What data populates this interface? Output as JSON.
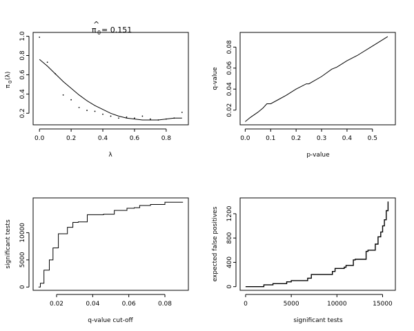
{
  "chart_data": [
    {
      "id": "pi0",
      "type": "scatter",
      "title": "π̂₀= 0.151",
      "title_parts": {
        "symbol": "π",
        "hat": "^",
        "sub": "0",
        "rest": "= 0.151"
      },
      "xlabel": "λ",
      "ylabel": "π₀(λ)",
      "ylabel_parts": {
        "symbol": "π",
        "sub": "0",
        "rest": "(λ)"
      },
      "xlim": [
        -0.04,
        0.94
      ],
      "ylim": [
        0.08,
        1.04
      ],
      "xticks": [
        0.0,
        0.2,
        0.4,
        0.6,
        0.8
      ],
      "xtick_labels": [
        "0.0",
        "0.2",
        "0.4",
        "0.6",
        "0.8"
      ],
      "yticks": [
        0.2,
        0.4,
        0.6,
        0.8,
        1.0
      ],
      "ytick_labels": [
        "0.2",
        "0.4",
        "0.6",
        "0.8",
        "1.0"
      ],
      "points": {
        "x": [
          0.0,
          0.05,
          0.1,
          0.15,
          0.2,
          0.25,
          0.3,
          0.35,
          0.4,
          0.45,
          0.5,
          0.55,
          0.6,
          0.65,
          0.7,
          0.75,
          0.8,
          0.85,
          0.9
        ],
        "y": [
          0.99,
          0.73,
          0.61,
          0.39,
          0.34,
          0.26,
          0.23,
          0.22,
          0.19,
          0.17,
          0.15,
          0.16,
          0.15,
          0.17,
          0.14,
          0.13,
          0.14,
          0.15,
          0.21
        ]
      },
      "smooth_curve": {
        "x": [
          0.0,
          0.05,
          0.1,
          0.15,
          0.2,
          0.25,
          0.3,
          0.35,
          0.4,
          0.45,
          0.5,
          0.55,
          0.6,
          0.65,
          0.7,
          0.75,
          0.8,
          0.85,
          0.9
        ],
        "y": [
          0.76,
          0.69,
          0.61,
          0.53,
          0.46,
          0.39,
          0.33,
          0.28,
          0.24,
          0.2,
          0.17,
          0.15,
          0.14,
          0.13,
          0.13,
          0.13,
          0.14,
          0.15,
          0.15
        ]
      }
    },
    {
      "id": "qp",
      "type": "line",
      "title": "",
      "xlabel": "p-value",
      "ylabel": "q-value",
      "xlim": [
        -0.02,
        0.59
      ],
      "ylim": [
        0.006,
        0.094
      ],
      "xticks": [
        0.0,
        0.1,
        0.2,
        0.3,
        0.4,
        0.5
      ],
      "xtick_labels": [
        "0.0",
        "0.1",
        "0.2",
        "0.3",
        "0.4",
        "0.5"
      ],
      "yticks": [
        0.02,
        0.04,
        0.06,
        0.08
      ],
      "ytick_labels": [
        "0.02",
        "0.04",
        "0.06",
        "0.08"
      ],
      "x": [
        0.0,
        0.02,
        0.05,
        0.07,
        0.085,
        0.1,
        0.13,
        0.16,
        0.2,
        0.24,
        0.25,
        0.3,
        0.34,
        0.36,
        0.4,
        0.44,
        0.5,
        0.56
      ],
      "y": [
        0.009,
        0.013,
        0.018,
        0.022,
        0.026,
        0.026,
        0.03,
        0.034,
        0.04,
        0.045,
        0.045,
        0.052,
        0.059,
        0.061,
        0.067,
        0.072,
        0.081,
        0.09
      ]
    },
    {
      "id": "sig",
      "type": "line",
      "step": true,
      "title": "",
      "xlabel": "q-value cut-off",
      "ylabel": "significant tests",
      "xlim": [
        0.007,
        0.093
      ],
      "ylim": [
        -600,
        16400
      ],
      "xticks": [
        0.02,
        0.04,
        0.06,
        0.08
      ],
      "xtick_labels": [
        "0.02",
        "0.04",
        "0.06",
        "0.08"
      ],
      "yticks": [
        0,
        5000,
        10000
      ],
      "ytick_labels": [
        "0",
        "5000",
        "10000"
      ],
      "x": [
        0.01,
        0.011,
        0.013,
        0.016,
        0.018,
        0.021,
        0.026,
        0.029,
        0.032,
        0.037,
        0.046,
        0.052,
        0.059,
        0.063,
        0.066,
        0.072,
        0.08,
        0.09
      ],
      "y": [
        0,
        700,
        3100,
        5000,
        7200,
        9800,
        11000,
        11900,
        12000,
        13300,
        13400,
        14100,
        14500,
        14600,
        15000,
        15200,
        15600,
        15600
      ]
    },
    {
      "id": "efp",
      "type": "line",
      "step": true,
      "title": "",
      "xlabel": "significant tests",
      "ylabel": "expected false positives",
      "xlim": [
        -600,
        16400
      ],
      "ylim": [
        -60,
        1460
      ],
      "xticks": [
        0,
        5000,
        10000,
        15000
      ],
      "xtick_labels": [
        "0",
        "5000",
        "10000",
        "15000"
      ],
      "yticks": [
        0,
        400,
        800,
        1200
      ],
      "ytick_labels": [
        "0",
        "400",
        "800",
        "1200"
      ],
      "x": [
        0,
        2000,
        3000,
        4500,
        5000,
        6800,
        7200,
        9500,
        9800,
        10800,
        11000,
        11800,
        12000,
        13200,
        13400,
        14200,
        14500,
        14800,
        15000,
        15200,
        15400,
        15600
      ],
      "y": [
        0,
        30,
        50,
        80,
        100,
        140,
        200,
        250,
        300,
        320,
        350,
        440,
        450,
        580,
        600,
        700,
        820,
        900,
        1000,
        1100,
        1250,
        1400
      ]
    }
  ]
}
